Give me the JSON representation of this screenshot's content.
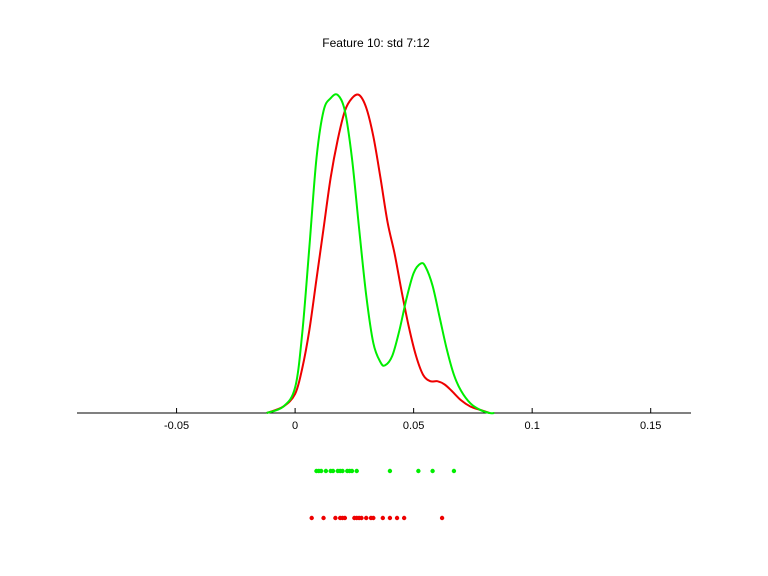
{
  "chart_data": {
    "type": "line",
    "title": "Feature 10: std 7:12",
    "xlabel": "",
    "ylabel": "",
    "xlim": [
      -0.092,
      0.167
    ],
    "ylim": [
      0,
      1
    ],
    "xticks": [
      -0.05,
      0,
      0.05,
      0.1,
      0.15
    ],
    "xtick_labels": [
      "-0.05",
      "0",
      "0.05",
      "0.1",
      "0.15"
    ],
    "grid": false,
    "series": [
      {
        "color": "#00ee00",
        "x": [
          -0.012,
          -0.005,
          0.0,
          0.003,
          0.006,
          0.009,
          0.012,
          0.015,
          0.018,
          0.021,
          0.024,
          0.027,
          0.03,
          0.033,
          0.036,
          0.038,
          0.041,
          0.044,
          0.047,
          0.05,
          0.053,
          0.055,
          0.058,
          0.061,
          0.064,
          0.067,
          0.07,
          0.074,
          0.078,
          0.082,
          0.084
        ],
        "y": [
          0.0,
          0.02,
          0.08,
          0.25,
          0.52,
          0.8,
          0.95,
          0.99,
          1.0,
          0.95,
          0.8,
          0.58,
          0.37,
          0.22,
          0.16,
          0.15,
          0.18,
          0.26,
          0.36,
          0.44,
          0.47,
          0.46,
          0.4,
          0.3,
          0.2,
          0.12,
          0.07,
          0.03,
          0.01,
          0.0,
          0.0
        ]
      },
      {
        "color": "#ee0000",
        "x": [
          -0.012,
          -0.005,
          0.0,
          0.003,
          0.006,
          0.009,
          0.012,
          0.015,
          0.018,
          0.021,
          0.024,
          0.027,
          0.03,
          0.033,
          0.036,
          0.039,
          0.042,
          0.045,
          0.048,
          0.051,
          0.054,
          0.057,
          0.06,
          0.063,
          0.066,
          0.07,
          0.074,
          0.078,
          0.082
        ],
        "y": [
          0.0,
          0.02,
          0.06,
          0.14,
          0.26,
          0.42,
          0.58,
          0.74,
          0.86,
          0.95,
          0.99,
          1.0,
          0.96,
          0.87,
          0.74,
          0.6,
          0.5,
          0.38,
          0.27,
          0.18,
          0.12,
          0.1,
          0.1,
          0.09,
          0.07,
          0.04,
          0.02,
          0.01,
          0.0
        ]
      }
    ],
    "rug": [
      {
        "color": "#00ee00",
        "x": [
          0.009,
          0.01,
          0.011,
          0.013,
          0.015,
          0.016,
          0.018,
          0.019,
          0.02,
          0.022,
          0.023,
          0.024,
          0.026,
          0.04,
          0.052,
          0.058,
          0.067
        ]
      },
      {
        "color": "#ee0000",
        "x": [
          0.007,
          0.012,
          0.017,
          0.019,
          0.02,
          0.021,
          0.025,
          0.026,
          0.027,
          0.028,
          0.03,
          0.032,
          0.033,
          0.037,
          0.04,
          0.043,
          0.046,
          0.062
        ]
      }
    ]
  }
}
